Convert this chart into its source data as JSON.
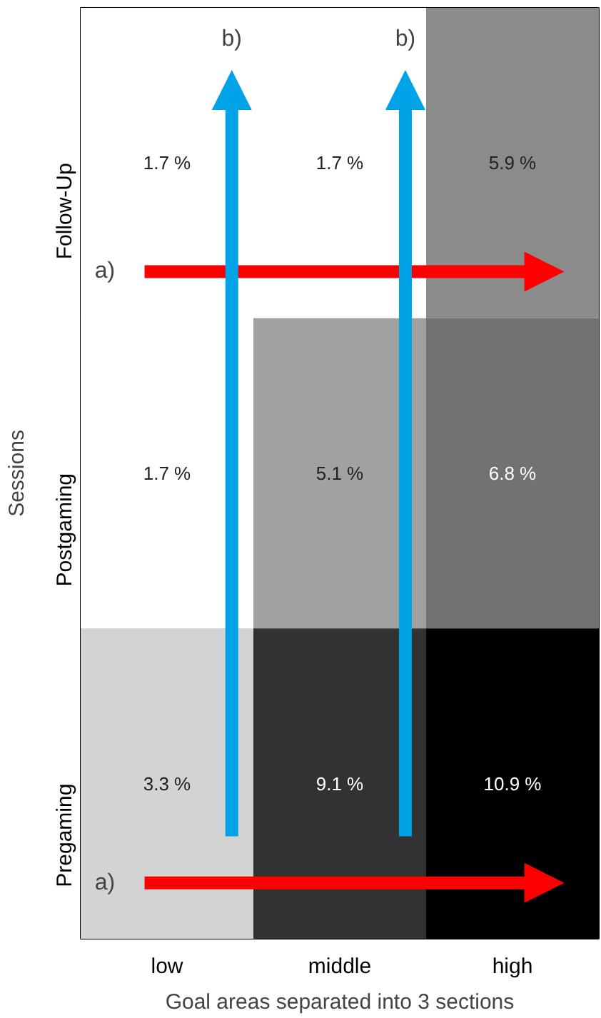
{
  "chart_data": {
    "type": "heatmap",
    "xlabel": "Goal areas separated into 3 sections",
    "ylabel": "Sessions",
    "categories": [
      "low",
      "middle",
      "high"
    ],
    "y_categories": [
      "Follow-Up",
      "Postgaming",
      "Pregaming"
    ],
    "cells": [
      [
        1.7,
        1.7,
        5.9
      ],
      [
        1.7,
        5.1,
        6.8
      ],
      [
        3.3,
        9.1,
        10.9
      ]
    ],
    "cell_labels": [
      [
        "1.7 %",
        "1.7 %",
        "5.9 %"
      ],
      [
        "1.7 %",
        "5.1 %",
        "6.8 %"
      ],
      [
        "3.3 %",
        "9.1 %",
        "10.9 %"
      ]
    ],
    "annotations": [
      "a)",
      "a)",
      "b)",
      "b)"
    ]
  }
}
